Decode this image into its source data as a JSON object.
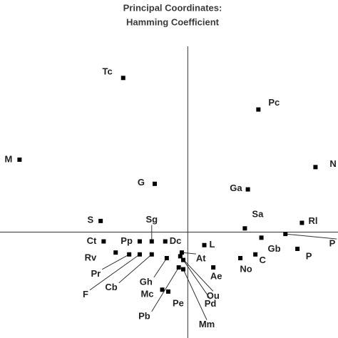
{
  "chart_data": {
    "type": "scatter",
    "title": "Principal Coordinates:",
    "subtitle": "Hamming Coefficient",
    "labels": [
      "Tc",
      "Pc",
      "M",
      "N",
      "G",
      "Ga",
      "S",
      "Sg",
      "Ct",
      "Pp",
      "Dc",
      "Sa",
      "Rl",
      "P",
      "Gb",
      "P",
      "C",
      "No",
      "L",
      "At",
      "Ae",
      "Rv",
      "Pr",
      "F",
      "Cb",
      "Gh",
      "Mc",
      "Pe",
      "Pb",
      "Ou",
      "Pd",
      "Mm"
    ],
    "x": [
      -0.43,
      0.47,
      -1.12,
      0.85,
      -0.22,
      0.4,
      -0.58,
      -0.24,
      -0.56,
      -0.32,
      -0.15,
      0.38,
      0.76,
      0.65,
      0.49,
      0.73,
      0.45,
      0.35,
      0.11,
      -0.04,
      0.17,
      -0.48,
      -0.39,
      -0.32,
      -0.24,
      -0.14,
      -0.17,
      -0.13,
      -0.06,
      -0.05,
      -0.03,
      -0.03
    ],
    "values": [
      0.83,
      0.66,
      0.39,
      0.35,
      0.26,
      0.23,
      0.06,
      -0.05,
      -0.05,
      -0.05,
      -0.05,
      0.02,
      0.05,
      -0.01,
      -0.03,
      -0.09,
      -0.12,
      -0.14,
      -0.07,
      -0.11,
      -0.19,
      -0.11,
      -0.12,
      -0.12,
      -0.12,
      -0.14,
      -0.31,
      -0.32,
      -0.19,
      -0.13,
      -0.15,
      -0.2
    ],
    "color": "#000000",
    "xlim": [
      -1.25,
      1.0
    ],
    "ylim": [
      -0.57,
      1.0
    ]
  }
}
